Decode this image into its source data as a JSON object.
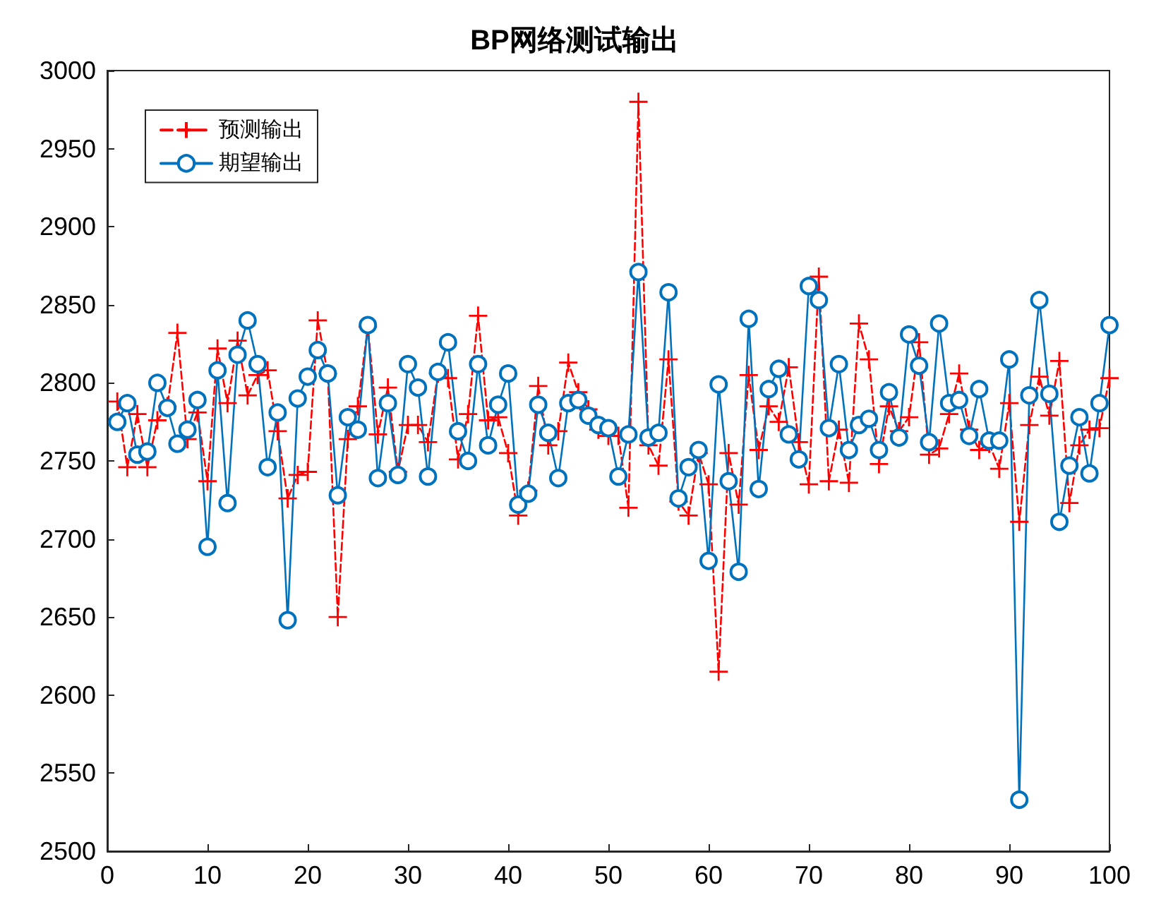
{
  "chart_data": {
    "type": "line",
    "title": "BP网络测试输出",
    "x": [
      1,
      2,
      3,
      4,
      5,
      6,
      7,
      8,
      9,
      10,
      11,
      12,
      13,
      14,
      15,
      16,
      17,
      18,
      19,
      20,
      21,
      22,
      23,
      24,
      25,
      26,
      27,
      28,
      29,
      30,
      31,
      32,
      33,
      34,
      35,
      36,
      37,
      38,
      39,
      40,
      41,
      42,
      43,
      44,
      45,
      46,
      47,
      48,
      49,
      50,
      51,
      52,
      53,
      54,
      55,
      56,
      57,
      58,
      59,
      60,
      61,
      62,
      63,
      64,
      65,
      66,
      67,
      68,
      69,
      70,
      71,
      72,
      73,
      74,
      75,
      76,
      77,
      78,
      79,
      80,
      81,
      82,
      83,
      84,
      85,
      86,
      87,
      88,
      89,
      90,
      91,
      92,
      93,
      94,
      95,
      96,
      97,
      98,
      99,
      100
    ],
    "series": [
      {
        "name": "预测输出",
        "color": "#ff0000",
        "marker": "cross",
        "line_style": "dashed",
        "values": [
          2788,
          2746,
          2780,
          2746,
          2776,
          2785,
          2832,
          2764,
          2781,
          2737,
          2822,
          2787,
          2827,
          2792,
          2805,
          2808,
          2769,
          2726,
          2741,
          2743,
          2840,
          2806,
          2650,
          2764,
          2785,
          2836,
          2767,
          2797,
          2743,
          2773,
          2773,
          2762,
          2806,
          2803,
          2751,
          2780,
          2843,
          2776,
          2778,
          2755,
          2715,
          2731,
          2798,
          2760,
          2769,
          2813,
          2794,
          2783,
          2770,
          2766,
          2766,
          2720,
          2980,
          2760,
          2747,
          2815,
          2724,
          2715,
          2755,
          2735,
          2615,
          2755,
          2722,
          2805,
          2757,
          2785,
          2775,
          2810,
          2762,
          2735,
          2868,
          2737,
          2770,
          2736,
          2838,
          2815,
          2748,
          2785,
          2769,
          2778,
          2826,
          2754,
          2758,
          2780,
          2806,
          2770,
          2757,
          2761,
          2745,
          2787,
          2711,
          2773,
          2804,
          2779,
          2814,
          2723,
          2760,
          2770,
          2771,
          2803
        ]
      },
      {
        "name": "期望输出",
        "color": "#0072bd",
        "marker": "circle",
        "line_style": "solid",
        "values": [
          2775,
          2787,
          2754,
          2756,
          2800,
          2784,
          2761,
          2770,
          2789,
          2695,
          2808,
          2723,
          2818,
          2840,
          2812,
          2746,
          2781,
          2648,
          2790,
          2804,
          2821,
          2806,
          2728,
          2778,
          2770,
          2837,
          2739,
          2787,
          2741,
          2812,
          2797,
          2740,
          2807,
          2826,
          2769,
          2750,
          2812,
          2760,
          2786,
          2806,
          2722,
          2729,
          2786,
          2768,
          2739,
          2787,
          2789,
          2779,
          2773,
          2771,
          2740,
          2767,
          2871,
          2765,
          2768,
          2858,
          2726,
          2746,
          2757,
          2686,
          2799,
          2737,
          2679,
          2841,
          2732,
          2796,
          2809,
          2767,
          2751,
          2862,
          2853,
          2771,
          2812,
          2757,
          2773,
          2777,
          2757,
          2794,
          2765,
          2831,
          2811,
          2762,
          2838,
          2787,
          2789,
          2766,
          2796,
          2763,
          2763,
          2815,
          2533,
          2792,
          2853,
          2793,
          2711,
          2747,
          2778,
          2742,
          2787,
          2837
        ]
      }
    ],
    "xlim": [
      0,
      100
    ],
    "xticks": [
      0,
      10,
      20,
      30,
      40,
      50,
      60,
      70,
      80,
      90,
      100
    ],
    "ylim": [
      2500,
      3000
    ],
    "yticks": [
      2500,
      2550,
      2600,
      2650,
      2700,
      2750,
      2800,
      2850,
      2900,
      2950,
      3000
    ],
    "grid": false,
    "legend": "top left"
  }
}
